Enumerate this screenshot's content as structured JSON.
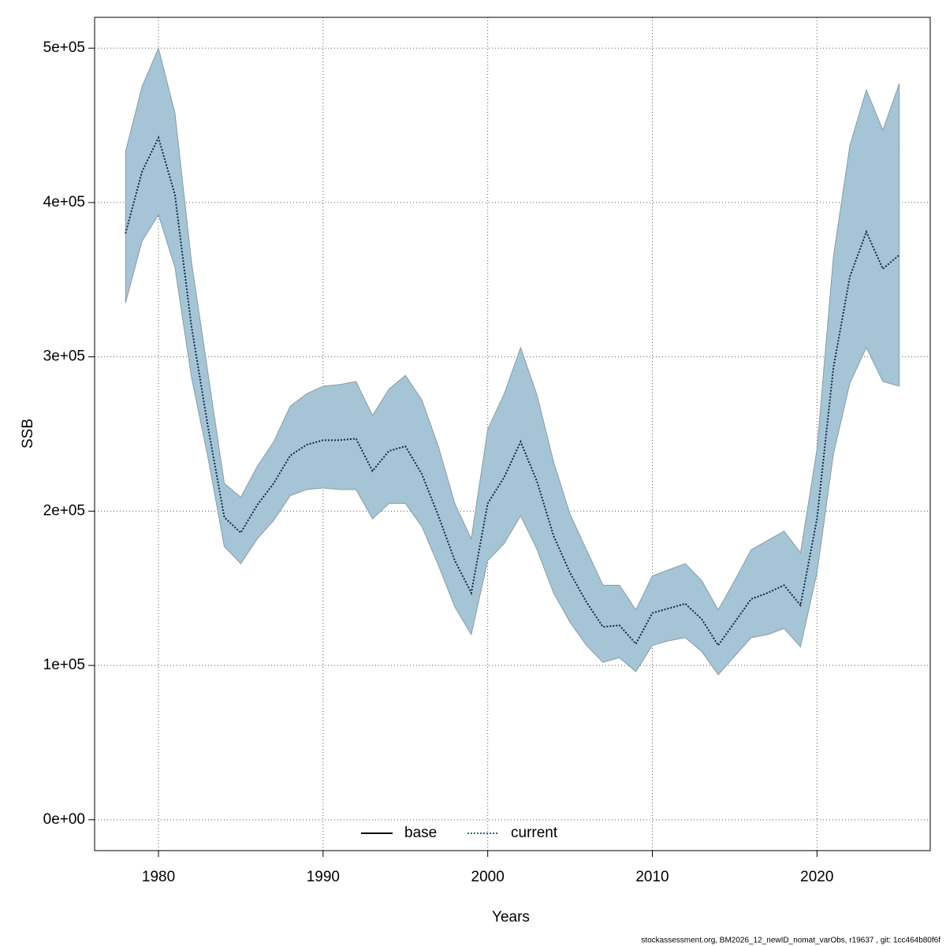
{
  "chart_data": {
    "type": "line",
    "x_label": "Years",
    "y_label": "SSB",
    "footer": "stockassessment.org, BM2026_12_newID_nomat_varObs, r19637 , git: 1cc464b80f6f",
    "x": [
      1978,
      1979,
      1980,
      1981,
      1982,
      1983,
      1984,
      1985,
      1986,
      1987,
      1988,
      1989,
      1990,
      1991,
      1992,
      1993,
      1994,
      1995,
      1996,
      1997,
      1998,
      1999,
      2000,
      2001,
      2002,
      2003,
      2004,
      2005,
      2006,
      2007,
      2008,
      2009,
      2010,
      2011,
      2012,
      2013,
      2014,
      2015,
      2016,
      2017,
      2018,
      2019,
      2020,
      2021,
      2022,
      2023,
      2024,
      2025
    ],
    "series": [
      {
        "name": "current",
        "color": "#0d2a44",
        "style": "dotted",
        "values": [
          380000,
          420000,
          442000,
          405000,
          320000,
          255000,
          196000,
          186000,
          204000,
          218000,
          236000,
          243000,
          246000,
          246000,
          247000,
          226000,
          239000,
          242000,
          224000,
          197000,
          168000,
          147000,
          205000,
          222000,
          245000,
          219000,
          184000,
          160000,
          141000,
          125000,
          126000,
          114000,
          134000,
          137000,
          140000,
          130000,
          113000,
          128000,
          143000,
          147000,
          152000,
          139000,
          195000,
          293000,
          352000,
          381000,
          357000,
          366000
        ],
        "lower": [
          335000,
          375000,
          392000,
          358000,
          287000,
          235000,
          177000,
          166000,
          182000,
          194000,
          210000,
          214000,
          215000,
          214000,
          214000,
          195000,
          205000,
          205000,
          190000,
          165000,
          138000,
          120000,
          168000,
          179000,
          197000,
          175000,
          147000,
          128000,
          113000,
          102000,
          105000,
          96000,
          113000,
          116000,
          118000,
          109000,
          94000,
          106000,
          118000,
          120000,
          124000,
          112000,
          160000,
          237000,
          283000,
          306000,
          284000,
          281000
        ],
        "upper": [
          433000,
          475000,
          500000,
          458000,
          362000,
          290000,
          218000,
          209000,
          229000,
          245000,
          268000,
          276000,
          281000,
          282000,
          284000,
          262000,
          279000,
          288000,
          272000,
          242000,
          205000,
          182000,
          253000,
          276000,
          306000,
          275000,
          232000,
          198000,
          175000,
          152000,
          152000,
          136000,
          158000,
          162000,
          166000,
          155000,
          136000,
          155000,
          175000,
          181000,
          187000,
          173000,
          240000,
          365000,
          437000,
          473000,
          447000,
          477000
        ],
        "band_color": "#a5c5d6"
      }
    ],
    "legend": [
      {
        "name": "base",
        "color": "#000000",
        "style": "solid"
      },
      {
        "name": "current",
        "color": "#1f6a9a",
        "style": "dotted"
      }
    ],
    "legend_position": "bottom",
    "xlim": [
      1976.12,
      2026.88
    ],
    "xticks": [
      1980,
      1990,
      2000,
      2010,
      2020
    ],
    "ylim": [
      -20000,
      520000
    ],
    "yticks": [
      {
        "value": 0,
        "label": "0e+00"
      },
      {
        "value": 100000,
        "label": "1e+05"
      },
      {
        "value": 200000,
        "label": "2e+05"
      },
      {
        "value": 300000,
        "label": "3e+05"
      },
      {
        "value": 400000,
        "label": "4e+05"
      },
      {
        "value": 500000,
        "label": "5e+05"
      }
    ],
    "grid": true
  }
}
